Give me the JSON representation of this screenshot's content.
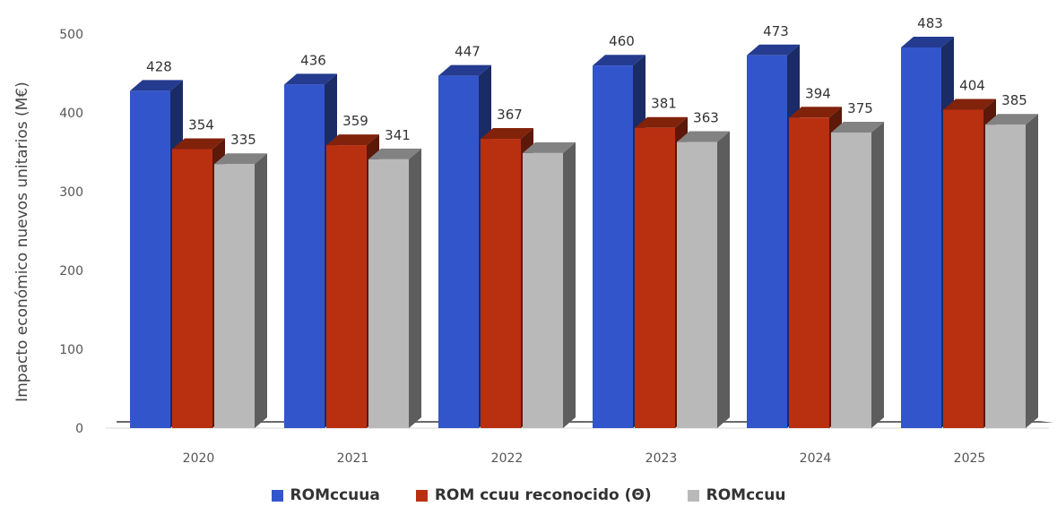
{
  "chart_data": {
    "type": "bar",
    "style": "3d-clustered-column",
    "title": "",
    "ylabel": "Impacto económico nuevos unitarios (M€)",
    "xlabel": "",
    "categories": [
      "2020",
      "2021",
      "2022",
      "2023",
      "2024",
      "2025"
    ],
    "ylim": [
      0,
      500
    ],
    "yticks": [
      "0",
      "100",
      "200",
      "300",
      "400",
      "500"
    ],
    "grid": false,
    "legend_position": "bottom",
    "series": [
      {
        "name": "ROMccuua",
        "color": "#3355cc",
        "values": [
          428,
          436,
          447,
          460,
          473,
          483
        ]
      },
      {
        "name": "ROM ccuu reconocido (Θ)",
        "color": "#b83010",
        "values": [
          354,
          359,
          367,
          381,
          394,
          404
        ]
      },
      {
        "name": "ROMccuu",
        "color": "#b9b9b9",
        "values": [
          335,
          341,
          349,
          363,
          375,
          385
        ]
      }
    ],
    "data_labels": [
      [
        "428",
        "436",
        "447",
        "460",
        "473",
        "483"
      ],
      [
        "354",
        "359",
        "367",
        "381",
        "394",
        "404"
      ],
      [
        "335",
        "341",
        "",
        "363",
        "375",
        "385"
      ]
    ]
  }
}
